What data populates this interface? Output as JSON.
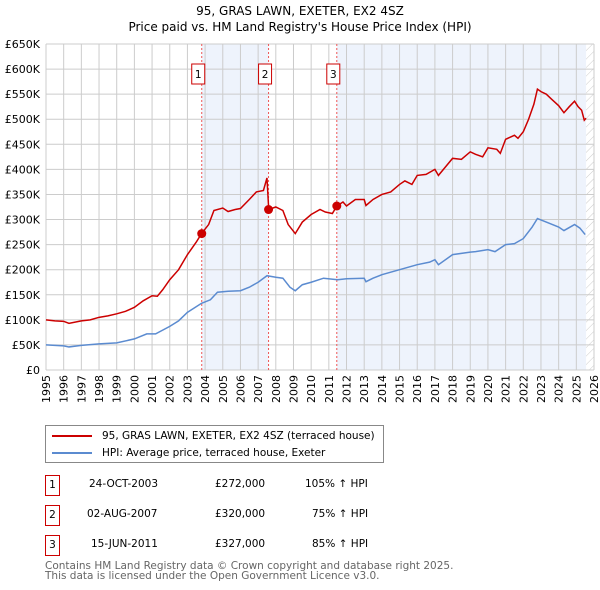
{
  "title": "95, GRAS LAWN, EXETER, EX2 4SZ",
  "subtitle": "Price paid vs. HM Land Registry's House Price Index (HPI)",
  "chart_data": {
    "type": "line",
    "xlim": [
      1995,
      2026
    ],
    "ylim": [
      0,
      650000
    ],
    "yticks": [
      {
        "v": 0,
        "l": "£0"
      },
      {
        "v": 50000,
        "l": "£50K"
      },
      {
        "v": 100000,
        "l": "£100K"
      },
      {
        "v": 150000,
        "l": "£150K"
      },
      {
        "v": 200000,
        "l": "£200K"
      },
      {
        "v": 250000,
        "l": "£250K"
      },
      {
        "v": 300000,
        "l": "£300K"
      },
      {
        "v": 350000,
        "l": "£350K"
      },
      {
        "v": 400000,
        "l": "£400K"
      },
      {
        "v": 450000,
        "l": "£450K"
      },
      {
        "v": 500000,
        "l": "£500K"
      },
      {
        "v": 550000,
        "l": "£550K"
      },
      {
        "v": 600000,
        "l": "£600K"
      },
      {
        "v": 650000,
        "l": "£650K"
      }
    ],
    "xticks": [
      "1995",
      "1996",
      "1997",
      "1998",
      "1999",
      "2000",
      "2001",
      "2002",
      "2003",
      "2004",
      "2005",
      "2006",
      "2007",
      "2008",
      "2009",
      "2010",
      "2011",
      "2012",
      "2013",
      "2014",
      "2015",
      "2016",
      "2017",
      "2018",
      "2019",
      "2020",
      "2021",
      "2022",
      "2023",
      "2024",
      "2025",
      "2026"
    ],
    "grid": true,
    "series": [
      {
        "name": "95, GRAS LAWN, EXETER, EX2 4SZ (terraced house)",
        "color": "#cc0000",
        "points": [
          [
            1995,
            100
          ],
          [
            1995.5,
            98
          ],
          [
            1996,
            97
          ],
          [
            1996.3,
            93
          ],
          [
            1997,
            98
          ],
          [
            1997.5,
            100
          ],
          [
            1998,
            105
          ],
          [
            1998.5,
            108
          ],
          [
            1999,
            112
          ],
          [
            1999.5,
            117
          ],
          [
            2000,
            125
          ],
          [
            2000.5,
            138
          ],
          [
            2001,
            148
          ],
          [
            2001.3,
            147
          ],
          [
            2001.6,
            160
          ],
          [
            2002,
            180
          ],
          [
            2002.5,
            200
          ],
          [
            2003,
            230
          ],
          [
            2003.5,
            255
          ],
          [
            2003.8,
            272
          ],
          [
            2004.2,
            290
          ],
          [
            2004.5,
            318
          ],
          [
            2005,
            323
          ],
          [
            2005.3,
            316
          ],
          [
            2005.7,
            320
          ],
          [
            2006,
            322
          ],
          [
            2006.5,
            340
          ],
          [
            2006.9,
            355
          ],
          [
            2007.3,
            358
          ],
          [
            2007.5,
            383
          ],
          [
            2007.6,
            320
          ],
          [
            2008,
            325
          ],
          [
            2008.4,
            318
          ],
          [
            2008.7,
            290
          ],
          [
            2009.1,
            272
          ],
          [
            2009.5,
            295
          ],
          [
            2010,
            310
          ],
          [
            2010.5,
            320
          ],
          [
            2010.8,
            315
          ],
          [
            2011.2,
            312
          ],
          [
            2011.45,
            327
          ],
          [
            2011.8,
            335
          ],
          [
            2012,
            327
          ],
          [
            2012.5,
            340
          ],
          [
            2013,
            340
          ],
          [
            2013.1,
            328
          ],
          [
            2013.5,
            340
          ],
          [
            2014,
            350
          ],
          [
            2014.5,
            355
          ],
          [
            2015,
            370
          ],
          [
            2015.3,
            377
          ],
          [
            2015.7,
            370
          ],
          [
            2016,
            388
          ],
          [
            2016.5,
            390
          ],
          [
            2017,
            400
          ],
          [
            2017.2,
            388
          ],
          [
            2017.6,
            405
          ],
          [
            2018,
            422
          ],
          [
            2018.5,
            420
          ],
          [
            2019,
            435
          ],
          [
            2019.3,
            430
          ],
          [
            2019.7,
            425
          ],
          [
            2020,
            443
          ],
          [
            2020.5,
            440
          ],
          [
            2020.7,
            432
          ],
          [
            2021,
            460
          ],
          [
            2021.5,
            468
          ],
          [
            2021.7,
            462
          ],
          [
            2022,
            475
          ],
          [
            2022.3,
            500
          ],
          [
            2022.6,
            530
          ],
          [
            2022.8,
            560
          ],
          [
            2023,
            555
          ],
          [
            2023.3,
            550
          ],
          [
            2023.6,
            540
          ],
          [
            2024,
            527
          ],
          [
            2024.3,
            513
          ],
          [
            2024.6,
            525
          ],
          [
            2024.9,
            536
          ],
          [
            2025.1,
            525
          ],
          [
            2025.3,
            518
          ],
          [
            2025.45,
            498
          ],
          [
            2025.55,
            502
          ]
        ]
      },
      {
        "name": "HPI: Average price, terraced house, Exeter",
        "color": "#5b8bd0",
        "points": [
          [
            1995,
            50
          ],
          [
            1996,
            48
          ],
          [
            1996.3,
            46
          ],
          [
            1997,
            49
          ],
          [
            1998,
            52
          ],
          [
            1999,
            54
          ],
          [
            2000,
            62
          ],
          [
            2000.7,
            72
          ],
          [
            2001.2,
            72
          ],
          [
            2002,
            87
          ],
          [
            2002.5,
            98
          ],
          [
            2003,
            115
          ],
          [
            2003.8,
            133
          ],
          [
            2004.3,
            140
          ],
          [
            2004.7,
            155
          ],
          [
            2005.3,
            157
          ],
          [
            2006,
            158
          ],
          [
            2006.5,
            165
          ],
          [
            2007,
            175
          ],
          [
            2007.5,
            188
          ],
          [
            2008,
            185
          ],
          [
            2008.4,
            183
          ],
          [
            2008.8,
            165
          ],
          [
            2009.1,
            158
          ],
          [
            2009.5,
            170
          ],
          [
            2010,
            175
          ],
          [
            2010.7,
            183
          ],
          [
            2011.5,
            180
          ],
          [
            2012,
            182
          ],
          [
            2013,
            183
          ],
          [
            2013.1,
            176
          ],
          [
            2013.5,
            183
          ],
          [
            2014,
            190
          ],
          [
            2015,
            200
          ],
          [
            2015.5,
            205
          ],
          [
            2016,
            210
          ],
          [
            2016.7,
            215
          ],
          [
            2017,
            220
          ],
          [
            2017.2,
            210
          ],
          [
            2018,
            230
          ],
          [
            2019,
            235
          ],
          [
            2019.3,
            236
          ],
          [
            2020,
            240
          ],
          [
            2020.4,
            236
          ],
          [
            2021,
            250
          ],
          [
            2021.5,
            252
          ],
          [
            2022,
            262
          ],
          [
            2022.5,
            285
          ],
          [
            2022.8,
            302
          ],
          [
            2023.3,
            295
          ],
          [
            2024,
            285
          ],
          [
            2024.3,
            278
          ],
          [
            2024.9,
            290
          ],
          [
            2025.2,
            283
          ],
          [
            2025.5,
            270
          ]
        ]
      }
    ],
    "value_unit": "thousands GBP",
    "sales": [
      {
        "n": "1",
        "x": 2003.81,
        "y": 272
      },
      {
        "n": "2",
        "x": 2007.59,
        "y": 320
      },
      {
        "n": "3",
        "x": 2011.45,
        "y": 327
      }
    ],
    "shaded": [
      [
        2003.81,
        2007.59
      ],
      [
        2011.45,
        2025.55
      ]
    ],
    "hatched_from": 2025.55
  },
  "legend": {
    "items": [
      "95, GRAS LAWN, EXETER, EX2 4SZ (terraced house)",
      "HPI: Average price, terraced house, Exeter"
    ],
    "colors": [
      "#cc0000",
      "#5b8bd0"
    ]
  },
  "table": [
    {
      "n": "1",
      "date": "24-OCT-2003",
      "price": "£272,000",
      "hpi": "105% ↑ HPI"
    },
    {
      "n": "2",
      "date": "02-AUG-2007",
      "price": "£320,000",
      "hpi": "75% ↑ HPI"
    },
    {
      "n": "3",
      "date": "15-JUN-2011",
      "price": "£327,000",
      "hpi": "85% ↑ HPI"
    }
  ],
  "footer": [
    "Contains HM Land Registry data © Crown copyright and database right 2025.",
    "This data is licensed under the Open Government Licence v3.0."
  ]
}
